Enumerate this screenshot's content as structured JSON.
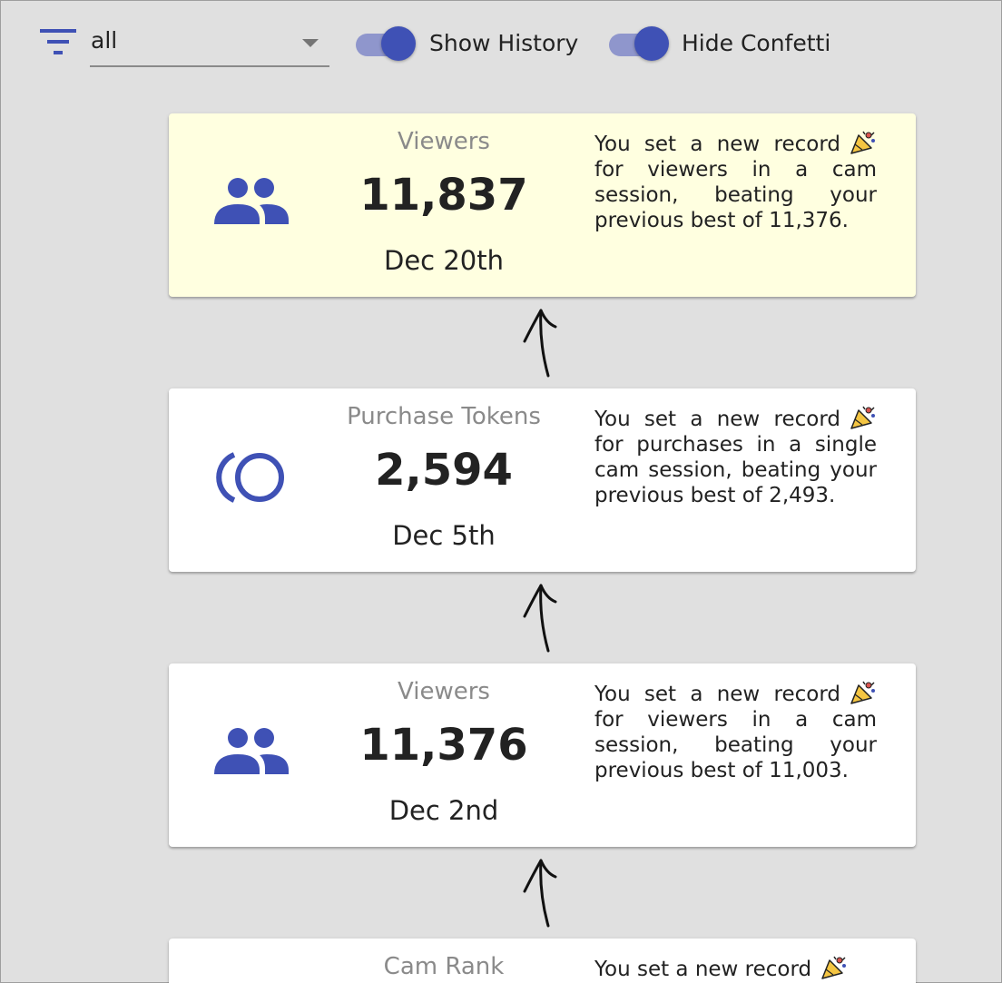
{
  "toolbar": {
    "filter_icon": "filter-list-icon",
    "filter_value": "all",
    "toggles": [
      {
        "label": "Show History",
        "on": true
      },
      {
        "label": "Hide Confetti",
        "on": true
      }
    ]
  },
  "colors": {
    "accent": "#3f51b5",
    "toggle_track": "#8f96cc",
    "highlight_card": "#ffffe0",
    "background": "#e0e0e0"
  },
  "records": [
    {
      "icon": "group-icon",
      "metric": "Viewers",
      "value": "11,837",
      "date": "Dec 20th",
      "description": "You set a new record",
      "description_rest": "for viewers in a cam session, beating your previous best of 11,376.",
      "highlighted": true
    },
    {
      "icon": "token-coin-icon",
      "metric": "Purchase Tokens",
      "value": "2,594",
      "date": "Dec 5th",
      "description": "You set a new record",
      "description_rest": "for purchases in a single cam session, beating your previous best of 2,493.",
      "highlighted": false
    },
    {
      "icon": "group-icon",
      "metric": "Viewers",
      "value": "11,376",
      "date": "Dec 2nd",
      "description": "You set a new record",
      "description_rest": "for viewers in a cam session, beating your previous best of 11,003.",
      "highlighted": false
    },
    {
      "metric": "Cam Rank",
      "description": "You set a new record",
      "highlighted": false
    }
  ]
}
